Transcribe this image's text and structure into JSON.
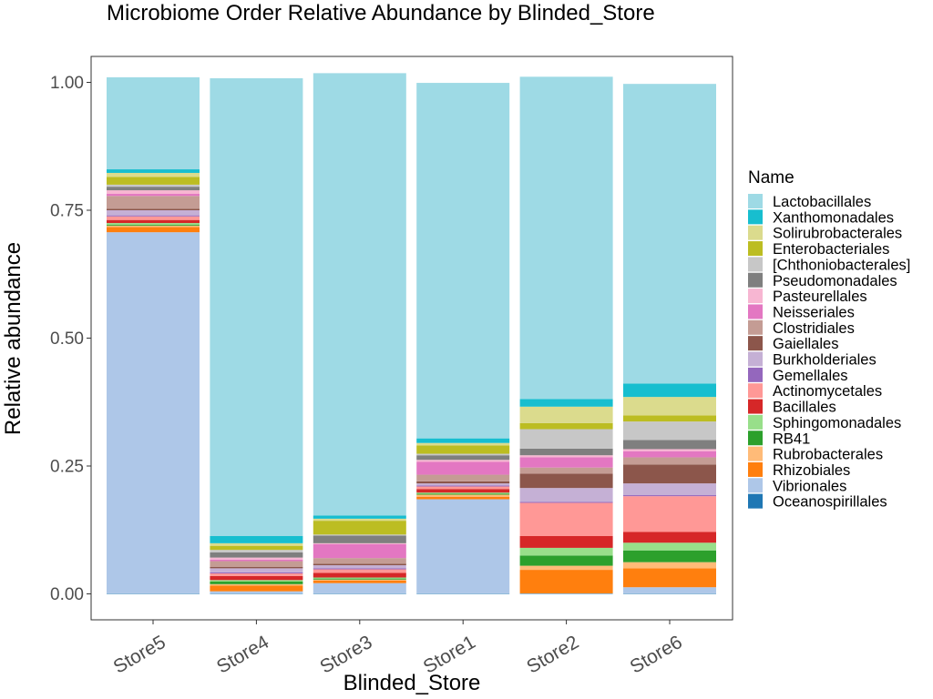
{
  "chart_data": {
    "type": "bar",
    "stacked": true,
    "title": "Microbiome Order Relative Abundance by Blinded_Store",
    "xlabel": "Blinded_Store",
    "ylabel": "Relative abundance",
    "ylim": [
      0,
      1
    ],
    "yticks": [
      "0.00",
      "0.25",
      "0.50",
      "0.75",
      "1.00"
    ],
    "categories": [
      "Store5",
      "Store4",
      "Store3",
      "Store1",
      "Store2",
      "Store6"
    ],
    "legend_title": "Name",
    "legend_position": "right",
    "series": [
      {
        "name": "Lactobacillales",
        "color": "#9edae5",
        "values": [
          0.18,
          0.895,
          0.865,
          0.695,
          0.63,
          0.586
        ]
      },
      {
        "name": "Xanthomonadales",
        "color": "#17becf",
        "values": [
          0.007,
          0.014,
          0.006,
          0.009,
          0.015,
          0.026
        ]
      },
      {
        "name": "Solirubrobacterales",
        "color": "#dbdb8d",
        "values": [
          0.008,
          0.005,
          0.004,
          0.005,
          0.032,
          0.036
        ]
      },
      {
        "name": "Enterobacteriales",
        "color": "#bcbd22",
        "values": [
          0.015,
          0.008,
          0.027,
          0.016,
          0.012,
          0.012
        ]
      },
      {
        "name": "[Chthoniobacterales]",
        "color": "#c7c7c7",
        "values": [
          0.004,
          0.005,
          0.002,
          0.003,
          0.038,
          0.036
        ]
      },
      {
        "name": "Pseudomonadales",
        "color": "#7f7f7f",
        "values": [
          0.007,
          0.01,
          0.015,
          0.009,
          0.013,
          0.018
        ]
      },
      {
        "name": "Pasteurellales",
        "color": "#f7b6d2",
        "values": [
          0.007,
          0.004,
          0.002,
          0.004,
          0.004,
          0.004
        ]
      },
      {
        "name": "Neisseriales",
        "color": "#e377c2",
        "values": [
          0.004,
          0.003,
          0.027,
          0.025,
          0.02,
          0.012
        ]
      },
      {
        "name": "Clostridiales",
        "color": "#c49c94",
        "values": [
          0.025,
          0.011,
          0.011,
          0.013,
          0.012,
          0.014
        ]
      },
      {
        "name": "Gaiellales",
        "color": "#8c564b",
        "values": [
          0.003,
          0.003,
          0.003,
          0.004,
          0.028,
          0.037
        ]
      },
      {
        "name": "Burkholderiales",
        "color": "#c5b0d5",
        "values": [
          0.01,
          0.008,
          0.006,
          0.004,
          0.027,
          0.023
        ]
      },
      {
        "name": "Gemellales",
        "color": "#9467bd",
        "values": [
          0.002,
          0.002,
          0.002,
          0.002,
          0.002,
          0.002
        ]
      },
      {
        "name": "Actinomycetales",
        "color": "#ff9896",
        "values": [
          0.007,
          0.005,
          0.007,
          0.005,
          0.065,
          0.07
        ]
      },
      {
        "name": "Bacillales",
        "color": "#d62728",
        "values": [
          0.006,
          0.008,
          0.009,
          0.007,
          0.023,
          0.021
        ]
      },
      {
        "name": "Sphingomonadales",
        "color": "#98df8a",
        "values": [
          0.003,
          0.003,
          0.002,
          0.002,
          0.015,
          0.015
        ]
      },
      {
        "name": "RB41",
        "color": "#2ca02c",
        "values": [
          0.002,
          0.005,
          0.002,
          0.002,
          0.02,
          0.023
        ]
      },
      {
        "name": "Rubrobacterales",
        "color": "#ffbb78",
        "values": [
          0.003,
          0.003,
          0.002,
          0.004,
          0.008,
          0.012
        ]
      },
      {
        "name": "Rhizobiales",
        "color": "#ff7f0e",
        "values": [
          0.01,
          0.011,
          0.005,
          0.005,
          0.046,
          0.037
        ]
      },
      {
        "name": "Vibrionales",
        "color": "#aec7e8",
        "values": [
          0.706,
          0.004,
          0.02,
          0.184,
          0.0,
          0.012
        ]
      },
      {
        "name": "Oceanospirillales",
        "color": "#1f77b4",
        "values": [
          0.001,
          0.001,
          0.001,
          0.001,
          0.001,
          0.001
        ]
      }
    ]
  }
}
